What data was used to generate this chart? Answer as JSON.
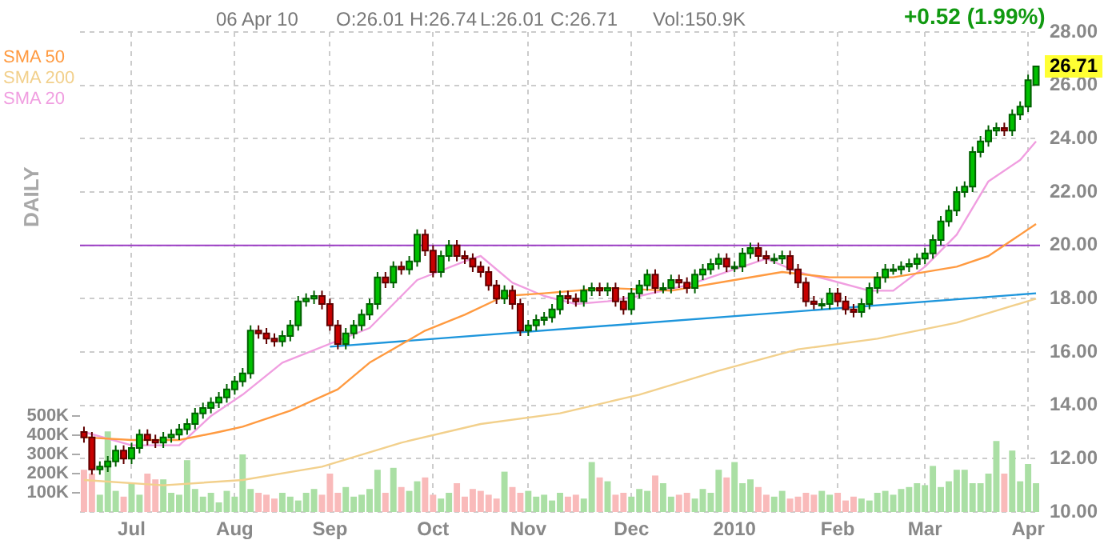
{
  "chart_data": {
    "type": "candlestick",
    "categories": [
      null,
      null,
      null,
      null,
      null,
      null,
      "Jul",
      null,
      null,
      null,
      null,
      null,
      null,
      null,
      null,
      null,
      null,
      null,
      null,
      "Aug",
      null,
      null,
      null,
      null,
      null,
      null,
      null,
      null,
      null,
      null,
      null,
      "Sep",
      null,
      null,
      null,
      null,
      null,
      null,
      null,
      null,
      null,
      null,
      null,
      null,
      "Oct",
      null,
      null,
      null,
      null,
      null,
      null,
      null,
      null,
      null,
      null,
      null,
      "Nov",
      null,
      null,
      null,
      null,
      null,
      null,
      null,
      null,
      null,
      null,
      null,
      null,
      "Dec",
      null,
      null,
      null,
      null,
      null,
      null,
      null,
      null,
      null,
      null,
      null,
      null,
      "2010",
      null,
      null,
      null,
      null,
      null,
      null,
      null,
      null,
      null,
      null,
      null,
      null,
      "Feb",
      null,
      null,
      null,
      null,
      null,
      null,
      null,
      null,
      null,
      null,
      "Mar",
      null,
      null,
      null,
      null,
      null,
      null,
      null,
      null,
      null,
      null,
      null,
      null,
      "Apr",
      null
    ],
    "ohlc": [
      [
        13.0,
        13.2,
        12.6,
        12.8
      ],
      [
        12.8,
        13.0,
        11.4,
        11.6
      ],
      [
        11.6,
        11.9,
        11.4,
        11.7
      ],
      [
        11.7,
        12.1,
        11.5,
        11.9
      ],
      [
        11.9,
        12.5,
        11.7,
        12.3
      ],
      [
        12.3,
        12.5,
        11.8,
        12.0
      ],
      [
        12.0,
        12.6,
        11.8,
        12.4
      ],
      [
        12.4,
        13.1,
        12.2,
        12.9
      ],
      [
        12.9,
        13.1,
        12.5,
        12.7
      ],
      [
        12.7,
        12.9,
        12.4,
        12.6
      ],
      [
        12.6,
        13.0,
        12.4,
        12.8
      ],
      [
        12.8,
        13.1,
        12.6,
        12.9
      ],
      [
        12.9,
        13.3,
        12.7,
        13.1
      ],
      [
        13.1,
        13.5,
        12.9,
        13.3
      ],
      [
        13.3,
        13.9,
        13.1,
        13.7
      ],
      [
        13.7,
        14.1,
        13.5,
        13.9
      ],
      [
        13.9,
        14.3,
        13.7,
        14.1
      ],
      [
        14.1,
        14.5,
        13.9,
        14.3
      ],
      [
        14.3,
        14.8,
        14.1,
        14.6
      ],
      [
        14.6,
        15.1,
        14.4,
        14.9
      ],
      [
        14.9,
        15.4,
        14.7,
        15.2
      ],
      [
        15.2,
        17.0,
        15.0,
        16.8
      ],
      [
        16.8,
        17.0,
        16.5,
        16.7
      ],
      [
        16.7,
        16.9,
        16.3,
        16.5
      ],
      [
        16.5,
        16.7,
        16.2,
        16.4
      ],
      [
        16.4,
        16.8,
        16.2,
        16.6
      ],
      [
        16.6,
        17.2,
        16.4,
        17.0
      ],
      [
        17.0,
        18.1,
        16.8,
        17.9
      ],
      [
        17.9,
        18.2,
        17.7,
        18.0
      ],
      [
        18.0,
        18.3,
        17.8,
        18.1
      ],
      [
        18.1,
        18.3,
        17.6,
        17.8
      ],
      [
        17.8,
        18.0,
        16.8,
        17.0
      ],
      [
        17.0,
        17.2,
        16.1,
        16.3
      ],
      [
        16.3,
        16.9,
        16.1,
        16.7
      ],
      [
        16.7,
        17.2,
        16.5,
        17.0
      ],
      [
        17.0,
        17.6,
        16.8,
        17.4
      ],
      [
        17.4,
        18.0,
        17.2,
        17.8
      ],
      [
        17.8,
        19.0,
        17.6,
        18.8
      ],
      [
        18.8,
        19.0,
        18.4,
        18.6
      ],
      [
        18.6,
        19.4,
        18.4,
        19.2
      ],
      [
        19.2,
        19.4,
        18.9,
        19.1
      ],
      [
        19.1,
        19.6,
        18.9,
        19.4
      ],
      [
        19.4,
        20.6,
        19.2,
        20.4
      ],
      [
        20.4,
        20.6,
        19.6,
        19.8
      ],
      [
        19.8,
        20.0,
        18.8,
        19.0
      ],
      [
        19.0,
        19.8,
        18.8,
        19.6
      ],
      [
        19.6,
        20.2,
        19.4,
        20.0
      ],
      [
        20.0,
        20.2,
        19.4,
        19.6
      ],
      [
        19.6,
        19.8,
        19.3,
        19.5
      ],
      [
        19.5,
        19.7,
        19.0,
        19.2
      ],
      [
        19.2,
        19.4,
        18.8,
        19.0
      ],
      [
        19.0,
        19.2,
        18.3,
        18.5
      ],
      [
        18.5,
        18.7,
        17.8,
        18.0
      ],
      [
        18.0,
        18.5,
        17.8,
        18.3
      ],
      [
        18.3,
        18.5,
        17.6,
        17.8
      ],
      [
        17.8,
        18.0,
        16.6,
        16.8
      ],
      [
        16.8,
        17.2,
        16.6,
        17.0
      ],
      [
        17.0,
        17.4,
        16.8,
        17.2
      ],
      [
        17.2,
        17.5,
        17.0,
        17.3
      ],
      [
        17.3,
        17.8,
        17.1,
        17.6
      ],
      [
        17.6,
        18.3,
        17.4,
        18.1
      ],
      [
        18.1,
        18.3,
        17.8,
        18.0
      ],
      [
        18.0,
        18.2,
        17.7,
        17.9
      ],
      [
        17.9,
        18.5,
        17.7,
        18.3
      ],
      [
        18.3,
        18.6,
        18.1,
        18.4
      ],
      [
        18.4,
        18.6,
        18.1,
        18.3
      ],
      [
        18.3,
        18.6,
        18.1,
        18.4
      ],
      [
        18.4,
        18.6,
        17.7,
        17.9
      ],
      [
        17.9,
        18.1,
        17.4,
        17.6
      ],
      [
        17.6,
        18.4,
        17.4,
        18.2
      ],
      [
        18.2,
        18.7,
        18.0,
        18.5
      ],
      [
        18.5,
        19.1,
        18.3,
        18.9
      ],
      [
        18.9,
        19.1,
        18.2,
        18.4
      ],
      [
        18.4,
        18.6,
        18.2,
        18.4
      ],
      [
        18.4,
        18.9,
        18.2,
        18.7
      ],
      [
        18.7,
        18.9,
        18.4,
        18.6
      ],
      [
        18.6,
        18.8,
        18.2,
        18.4
      ],
      [
        18.4,
        19.1,
        18.2,
        18.9
      ],
      [
        18.9,
        19.3,
        18.7,
        19.1
      ],
      [
        19.1,
        19.5,
        18.9,
        19.3
      ],
      [
        19.3,
        19.7,
        19.1,
        19.5
      ],
      [
        19.5,
        19.7,
        19.0,
        19.2
      ],
      [
        19.2,
        19.4,
        19.0,
        19.2
      ],
      [
        19.2,
        19.9,
        19.0,
        19.7
      ],
      [
        19.7,
        20.1,
        19.5,
        19.9
      ],
      [
        19.9,
        20.1,
        19.4,
        19.6
      ],
      [
        19.6,
        19.8,
        19.3,
        19.5
      ],
      [
        19.5,
        19.7,
        19.3,
        19.5
      ],
      [
        19.5,
        19.8,
        19.3,
        19.6
      ],
      [
        19.6,
        19.8,
        18.9,
        19.1
      ],
      [
        19.1,
        19.3,
        18.4,
        18.6
      ],
      [
        18.6,
        18.8,
        17.7,
        17.9
      ],
      [
        17.9,
        18.1,
        17.6,
        17.8
      ],
      [
        17.8,
        18.0,
        17.6,
        17.8
      ],
      [
        17.8,
        18.4,
        17.6,
        18.2
      ],
      [
        18.2,
        18.4,
        17.7,
        17.9
      ],
      [
        17.9,
        18.1,
        17.4,
        17.6
      ],
      [
        17.6,
        17.8,
        17.3,
        17.5
      ],
      [
        17.5,
        18.0,
        17.3,
        17.8
      ],
      [
        17.8,
        18.6,
        17.6,
        18.4
      ],
      [
        18.4,
        19.0,
        18.2,
        18.8
      ],
      [
        18.8,
        19.3,
        18.6,
        19.1
      ],
      [
        19.1,
        19.3,
        18.9,
        19.1
      ],
      [
        19.1,
        19.4,
        18.9,
        19.2
      ],
      [
        19.2,
        19.5,
        19.0,
        19.3
      ],
      [
        19.3,
        19.7,
        19.1,
        19.5
      ],
      [
        19.5,
        19.9,
        19.3,
        19.7
      ],
      [
        19.7,
        20.4,
        19.5,
        20.2
      ],
      [
        20.2,
        21.1,
        20.0,
        20.9
      ],
      [
        20.9,
        21.5,
        20.7,
        21.3
      ],
      [
        21.3,
        22.2,
        21.1,
        22.0
      ],
      [
        22.0,
        22.4,
        21.8,
        22.2
      ],
      [
        22.2,
        23.7,
        22.0,
        23.5
      ],
      [
        23.5,
        24.1,
        23.3,
        23.9
      ],
      [
        23.9,
        24.5,
        23.7,
        24.3
      ],
      [
        24.3,
        24.6,
        24.1,
        24.4
      ],
      [
        24.4,
        24.6,
        24.1,
        24.3
      ],
      [
        24.3,
        25.1,
        24.1,
        24.9
      ],
      [
        24.9,
        25.4,
        24.7,
        25.2
      ],
      [
        25.2,
        26.4,
        25.0,
        26.19
      ],
      [
        26.01,
        26.74,
        26.01,
        26.71
      ]
    ],
    "series": [
      {
        "name": "SMA 50",
        "type": "line",
        "color": "#ff9a40",
        "values": [
          12.8,
          null,
          null,
          null,
          null,
          null,
          12.7,
          null,
          null,
          null,
          null,
          null,
          12.7,
          null,
          null,
          null,
          null,
          13.0,
          null,
          null,
          13.2,
          null,
          null,
          null,
          null,
          null,
          13.8,
          null,
          null,
          null,
          null,
          null,
          14.6,
          null,
          null,
          null,
          15.6,
          null,
          null,
          null,
          null,
          null,
          null,
          16.8,
          null,
          null,
          null,
          null,
          17.4,
          null,
          null,
          null,
          null,
          18.1,
          null,
          null,
          null,
          null,
          18.2,
          null,
          null,
          null,
          null,
          null,
          null,
          null,
          18.4,
          null,
          null,
          null,
          null,
          null,
          null,
          null,
          18.3,
          null,
          null,
          null,
          null,
          null,
          null,
          null,
          18.7,
          null,
          null,
          null,
          null,
          null,
          19.0,
          null,
          null,
          null,
          null,
          null,
          18.8,
          null,
          null,
          null,
          null,
          null,
          null,
          null,
          18.8,
          null,
          null,
          null,
          null,
          null,
          null,
          null,
          19.2,
          null,
          null,
          null,
          19.6,
          null,
          null,
          null,
          null,
          null,
          20.8
        ]
      },
      {
        "name": "SMA 200",
        "type": "line",
        "color": "#f2d08c",
        "values": [
          11.2,
          null,
          null,
          null,
          null,
          null,
          null,
          null,
          null,
          null,
          11.0,
          null,
          null,
          null,
          null,
          null,
          null,
          null,
          null,
          null,
          11.2,
          null,
          null,
          null,
          null,
          null,
          null,
          null,
          null,
          null,
          11.7,
          null,
          null,
          null,
          null,
          null,
          null,
          null,
          null,
          null,
          12.6,
          null,
          null,
          null,
          null,
          null,
          null,
          null,
          null,
          null,
          13.3,
          null,
          null,
          null,
          null,
          null,
          null,
          null,
          null,
          null,
          13.7,
          null,
          null,
          null,
          null,
          null,
          null,
          null,
          null,
          null,
          14.4,
          null,
          null,
          null,
          null,
          null,
          null,
          null,
          null,
          null,
          15.3,
          null,
          null,
          null,
          null,
          null,
          null,
          null,
          null,
          null,
          16.1,
          null,
          null,
          null,
          null,
          null,
          null,
          null,
          null,
          null,
          16.5,
          null,
          null,
          null,
          null,
          null,
          null,
          null,
          null,
          null,
          17.1,
          null,
          null,
          null,
          null,
          null,
          null,
          null,
          null,
          null,
          18.0
        ]
      },
      {
        "name": "SMA 20",
        "type": "line",
        "color": "#f09ee0",
        "values": [
          13.0,
          null,
          null,
          null,
          null,
          null,
          12.5,
          null,
          null,
          null,
          null,
          null,
          12.5,
          null,
          null,
          null,
          13.6,
          null,
          null,
          null,
          14.4,
          null,
          null,
          null,
          null,
          15.6,
          null,
          null,
          null,
          null,
          null,
          null,
          null,
          null,
          null,
          null,
          16.9,
          null,
          null,
          null,
          null,
          null,
          18.7,
          null,
          null,
          null,
          null,
          null,
          19.4,
          null,
          19.6,
          null,
          null,
          null,
          18.6,
          null,
          null,
          null,
          18.1,
          null,
          null,
          null,
          17.8,
          null,
          null,
          null,
          17.9,
          null,
          null,
          null,
          18.1,
          null,
          null,
          null,
          null,
          null,
          18.5,
          null,
          null,
          null,
          null,
          null,
          19.1,
          null,
          null,
          null,
          19.5,
          null,
          null,
          null,
          19.0,
          null,
          null,
          null,
          18.7,
          null,
          null,
          null,
          null,
          18.3,
          null,
          null,
          18.3,
          null,
          null,
          null,
          19.2,
          null,
          null,
          null,
          20.4,
          null,
          null,
          null,
          22.4,
          null,
          null,
          null,
          23.2,
          null,
          23.9
        ]
      },
      {
        "type": "line",
        "color": "#1e96dc",
        "values": [
          null,
          null,
          null,
          null,
          null,
          null,
          null,
          null,
          null,
          null,
          null,
          null,
          null,
          null,
          null,
          null,
          null,
          null,
          null,
          null,
          null,
          null,
          null,
          null,
          null,
          null,
          null,
          null,
          null,
          null,
          null,
          16.2,
          null,
          null,
          null,
          null,
          null,
          null,
          null,
          null,
          null,
          null,
          null,
          null,
          null,
          null,
          null,
          null,
          null,
          null,
          null,
          null,
          null,
          null,
          null,
          null,
          null,
          null,
          null,
          null,
          null,
          null,
          null,
          null,
          null,
          null,
          null,
          null,
          null,
          null,
          null,
          null,
          null,
          null,
          null,
          null,
          null,
          null,
          null,
          null,
          null,
          null,
          null,
          null,
          null,
          null,
          null,
          null,
          null,
          null,
          null,
          null,
          null,
          null,
          null,
          null,
          null,
          null,
          null,
          null,
          null,
          null,
          null,
          null,
          null,
          null,
          null,
          null,
          null,
          null,
          null,
          null,
          null,
          null,
          null,
          null,
          null,
          null,
          null,
          null,
          18.2
        ]
      },
      {
        "type": "bar",
        "axis": "y2",
        "colors": [
          "#f9baba",
          "#f9baba",
          "#aadfa4",
          "#aadfa4",
          "#aadfa4",
          "#f9baba",
          "#aadfa4",
          "#aadfa4",
          "#f9baba",
          "#f9baba",
          "#aadfa4",
          "#aadfa4",
          "#aadfa4",
          "#aadfa4",
          "#aadfa4",
          "#aadfa4",
          "#aadfa4",
          "#aadfa4",
          "#aadfa4",
          "#aadfa4",
          "#aadfa4",
          "#aadfa4",
          "#f9baba",
          "#f9baba",
          "#f9baba",
          "#aadfa4",
          "#aadfa4",
          "#aadfa4",
          "#aadfa4",
          "#aadfa4",
          "#f9baba",
          "#f9baba",
          "#f9baba",
          "#aadfa4",
          "#aadfa4",
          "#aadfa4",
          "#aadfa4",
          "#aadfa4",
          "#f9baba",
          "#aadfa4",
          "#f9baba",
          "#aadfa4",
          "#aadfa4",
          "#f9baba",
          "#f9baba",
          "#aadfa4",
          "#aadfa4",
          "#f9baba",
          "#f9baba",
          "#f9baba",
          "#f9baba",
          "#f9baba",
          "#f9baba",
          "#aadfa4",
          "#f9baba",
          "#f9baba",
          "#aadfa4",
          "#aadfa4",
          "#aadfa4",
          "#aadfa4",
          "#aadfa4",
          "#f9baba",
          "#f9baba",
          "#aadfa4",
          "#aadfa4",
          "#f9baba",
          "#aadfa4",
          "#f9baba",
          "#f9baba",
          "#aadfa4",
          "#aadfa4",
          "#aadfa4",
          "#f9baba",
          "#aadfa4",
          "#aadfa4",
          "#f9baba",
          "#f9baba",
          "#aadfa4",
          "#aadfa4",
          "#aadfa4",
          "#aadfa4",
          "#f9baba",
          "#aadfa4",
          "#aadfa4",
          "#aadfa4",
          "#f9baba",
          "#f9baba",
          "#aadfa4",
          "#aadfa4",
          "#f9baba",
          "#f9baba",
          "#f9baba",
          "#f9baba",
          "#aadfa4",
          "#aadfa4",
          "#f9baba",
          "#f9baba",
          "#f9baba",
          "#aadfa4",
          "#aadfa4",
          "#aadfa4",
          "#aadfa4",
          "#aadfa4",
          "#aadfa4",
          "#aadfa4",
          "#aadfa4",
          "#aadfa4",
          "#aadfa4",
          "#aadfa4",
          "#aadfa4",
          "#aadfa4",
          "#aadfa4",
          "#aadfa4",
          "#aadfa4",
          "#aadfa4",
          "#aadfa4",
          "#f9baba",
          "#aadfa4",
          "#aadfa4",
          "#aadfa4",
          "#aadfa4"
        ],
        "values": [
          220000,
          200000,
          90000,
          420000,
          110000,
          80000,
          150000,
          90000,
          200000,
          170000,
          170000,
          100000,
          90000,
          270000,
          120000,
          80000,
          100000,
          50000,
          110000,
          80000,
          300000,
          120000,
          100000,
          90000,
          70000,
          100000,
          80000,
          60000,
          100000,
          120000,
          90000,
          200000,
          100000,
          130000,
          80000,
          90000,
          120000,
          220000,
          100000,
          230000,
          130000,
          110000,
          160000,
          180000,
          90000,
          70000,
          100000,
          150000,
          80000,
          120000,
          110000,
          90000,
          70000,
          210000,
          130000,
          100000,
          110000,
          80000,
          90000,
          60000,
          100000,
          80000,
          90000,
          70000,
          260000,
          180000,
          160000,
          90000,
          100000,
          80000,
          120000,
          110000,
          190000,
          150000,
          80000,
          90000,
          100000,
          70000,
          120000,
          100000,
          220000,
          180000,
          260000,
          150000,
          170000,
          130000,
          90000,
          80000,
          110000,
          70000,
          80000,
          100000,
          90000,
          110000,
          90000,
          100000,
          60000,
          80000,
          70000,
          60000,
          100000,
          110000,
          90000,
          120000,
          130000,
          150000,
          140000,
          240000,
          130000,
          160000,
          220000,
          220000,
          150000,
          150000,
          200000,
          370000,
          200000,
          320000,
          160000,
          250000,
          150000
        ]
      }
    ],
    "ylim": [
      10,
      28
    ],
    "yticks": [
      {
        "value": 10,
        "label": "10.00"
      },
      {
        "value": 12,
        "label": "12.00"
      },
      {
        "value": 14,
        "label": "14.00"
      },
      {
        "value": 16,
        "label": "16.00"
      },
      {
        "value": 18,
        "label": "18.00"
      },
      {
        "value": 20,
        "label": "20.00"
      },
      {
        "value": 22,
        "label": "22.00"
      },
      {
        "value": 24,
        "label": "24.00"
      },
      {
        "value": 26,
        "label": "26.00"
      },
      {
        "value": 28,
        "label": "28.00"
      }
    ],
    "y2lim": [
      0,
      2500000
    ],
    "y2ticks": [
      {
        "value": 100000,
        "label": "100K"
      },
      {
        "value": 200000,
        "label": "200K"
      },
      {
        "value": 300000,
        "label": "300K"
      },
      {
        "value": 400000,
        "label": "400K"
      },
      {
        "value": 500000,
        "label": "500K"
      }
    ],
    "ref_lines": [
      {
        "axis": "y",
        "value": 20,
        "color": "#9b3cc4"
      }
    ],
    "annotations": [
      "06 Apr 10",
      "O:26.01",
      "H:26.74",
      "L:26.01",
      "C:26.71",
      "Vol:150.9K",
      "+0.52 (1.99%)",
      "DAILY",
      {
        "text": "26.71",
        "y": 26.71
      }
    ],
    "grid": true,
    "legend": "top left",
    "marker": "none"
  }
}
